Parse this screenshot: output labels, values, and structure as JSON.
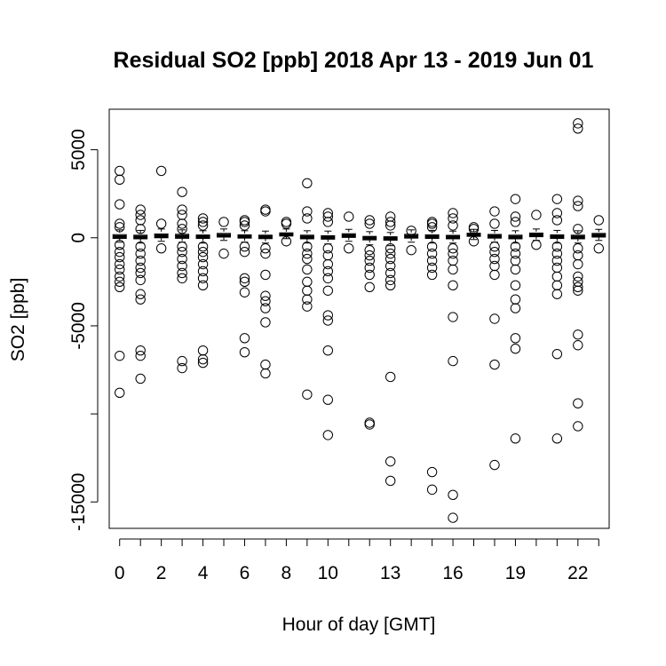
{
  "chart_data": {
    "type": "boxplot",
    "title": "Residual SO2 [ppb] 2018 Apr 13 - 2019 Jun 01",
    "xlabel": "Hour of day [GMT]",
    "ylabel": "SO2 [ppb]",
    "xlim": [
      -0.5,
      23.5
    ],
    "ylim": [
      -16500,
      7300
    ],
    "x_tick_labels": [
      "0",
      "2",
      "4",
      "6",
      "8",
      "10",
      "13",
      "16",
      "19",
      "22"
    ],
    "x_tick_label_positions": [
      0,
      2,
      4,
      6,
      8,
      10,
      13,
      16,
      19,
      22
    ],
    "y_ticks": [
      5000,
      0,
      -5000,
      -10000,
      -15000
    ],
    "y_tick_labels": [
      "5000",
      "0",
      "-5000",
      "",
      "-15000"
    ],
    "hours": [
      0,
      1,
      2,
      3,
      4,
      5,
      6,
      7,
      8,
      9,
      10,
      11,
      12,
      13,
      14,
      15,
      16,
      17,
      18,
      19,
      20,
      21,
      22,
      23
    ],
    "boxes": [
      {
        "hour": 0,
        "q1": -40,
        "median": 60,
        "q3": 180,
        "whisker_low": -250,
        "whisker_high": 450
      },
      {
        "hour": 1,
        "q1": -60,
        "median": 40,
        "q3": 150,
        "whisker_low": -300,
        "whisker_high": 420
      },
      {
        "hour": 2,
        "q1": 0,
        "median": 100,
        "q3": 220,
        "whisker_low": -200,
        "whisker_high": 500
      },
      {
        "hour": 3,
        "q1": -30,
        "median": 80,
        "q3": 200,
        "whisker_low": -250,
        "whisker_high": 450
      },
      {
        "hour": 4,
        "q1": -40,
        "median": 60,
        "q3": 160,
        "whisker_low": -300,
        "whisker_high": 400
      },
      {
        "hour": 5,
        "q1": 40,
        "median": 130,
        "q3": 250,
        "whisker_low": -150,
        "whisker_high": 500
      },
      {
        "hour": 6,
        "q1": -20,
        "median": 70,
        "q3": 170,
        "whisker_low": -250,
        "whisker_high": 400
      },
      {
        "hour": 7,
        "q1": -50,
        "median": 50,
        "q3": 150,
        "whisker_low": -300,
        "whisker_high": 380
      },
      {
        "hour": 8,
        "q1": 100,
        "median": 180,
        "q3": 280,
        "whisker_low": -50,
        "whisker_high": 500
      },
      {
        "hour": 9,
        "q1": -60,
        "median": 40,
        "q3": 150,
        "whisker_low": -300,
        "whisker_high": 400
      },
      {
        "hour": 10,
        "q1": -80,
        "median": 20,
        "q3": 120,
        "whisker_low": -350,
        "whisker_high": 380
      },
      {
        "hour": 11,
        "q1": 20,
        "median": 120,
        "q3": 230,
        "whisker_low": -200,
        "whisker_high": 480
      },
      {
        "hour": 12,
        "q1": -120,
        "median": -20,
        "q3": 80,
        "whisker_low": -400,
        "whisker_high": 350
      },
      {
        "hour": 13,
        "q1": -140,
        "median": -40,
        "q3": 60,
        "whisker_low": -450,
        "whisker_high": 300
      },
      {
        "hour": 14,
        "q1": -20,
        "median": 80,
        "q3": 200,
        "whisker_low": -250,
        "whisker_high": 450
      },
      {
        "hour": 15,
        "q1": -40,
        "median": 60,
        "q3": 170,
        "whisker_low": -300,
        "whisker_high": 420
      },
      {
        "hour": 16,
        "q1": -60,
        "median": 40,
        "q3": 140,
        "whisker_low": -300,
        "whisker_high": 380
      },
      {
        "hour": 17,
        "q1": 80,
        "median": 160,
        "q3": 260,
        "whisker_low": -100,
        "whisker_high": 480
      },
      {
        "hour": 18,
        "q1": -20,
        "median": 80,
        "q3": 190,
        "whisker_low": -250,
        "whisker_high": 420
      },
      {
        "hour": 19,
        "q1": -60,
        "median": 40,
        "q3": 150,
        "whisker_low": -300,
        "whisker_high": 400
      },
      {
        "hour": 20,
        "q1": 60,
        "median": 160,
        "q3": 270,
        "whisker_low": -150,
        "whisker_high": 500
      },
      {
        "hour": 21,
        "q1": -40,
        "median": 60,
        "q3": 170,
        "whisker_low": -300,
        "whisker_high": 420
      },
      {
        "hour": 22,
        "q1": -60,
        "median": 40,
        "q3": 150,
        "whisker_low": -300,
        "whisker_high": 400
      },
      {
        "hour": 23,
        "q1": 40,
        "median": 140,
        "q3": 250,
        "whisker_low": -150,
        "whisker_high": 480
      }
    ],
    "outliers": [
      {
        "hour": 0,
        "values": [
          3800,
          3300,
          1900,
          800,
          600,
          -400,
          -800,
          -1100,
          -1500,
          -1800,
          -2200,
          -2500,
          -2800,
          -6700,
          -8800
        ]
      },
      {
        "hour": 1,
        "values": [
          1600,
          1300,
          1000,
          500,
          -500,
          -900,
          -1300,
          -1700,
          -2000,
          -2400,
          -3200,
          -3500,
          -6400,
          -6700,
          -8000
        ]
      },
      {
        "hour": 2,
        "values": [
          3800,
          800,
          -600
        ]
      },
      {
        "hour": 3,
        "values": [
          2600,
          1600,
          1300,
          800,
          500,
          -500,
          -800,
          -1200,
          -1600,
          -2000,
          -2300,
          -7000,
          -7400
        ]
      },
      {
        "hour": 4,
        "values": [
          1100,
          900,
          700,
          -500,
          -800,
          -1100,
          -1500,
          -1900,
          -2300,
          -2700,
          -6400,
          -6900,
          -7100
        ]
      },
      {
        "hour": 5,
        "values": [
          900,
          -900
        ]
      },
      {
        "hour": 6,
        "values": [
          1000,
          900,
          700,
          -500,
          -800,
          -2300,
          -2500,
          -3100,
          -5700,
          -6500
        ]
      },
      {
        "hour": 7,
        "values": [
          1600,
          1500,
          -600,
          -900,
          -2100,
          -3300,
          -3600,
          -4000,
          -4800,
          -7200,
          -7700
        ]
      },
      {
        "hour": 8,
        "values": [
          900,
          800,
          -200
        ]
      },
      {
        "hour": 9,
        "values": [
          3100,
          1500,
          1100,
          -500,
          -900,
          -1200,
          -1800,
          -2500,
          -3000,
          -3500,
          -3900,
          -8900
        ]
      },
      {
        "hour": 10,
        "values": [
          1400,
          1200,
          900,
          -600,
          -1000,
          -1500,
          -1900,
          -2300,
          -3000,
          -4400,
          -4700,
          -6400,
          -9200,
          -11200
        ]
      },
      {
        "hour": 11,
        "values": [
          1200,
          -600
        ]
      },
      {
        "hour": 12,
        "values": [
          1000,
          800,
          -700,
          -1000,
          -1300,
          -1700,
          -2100,
          -2800,
          -10500,
          -10600
        ]
      },
      {
        "hour": 13,
        "values": [
          1200,
          900,
          700,
          -600,
          -900,
          -1200,
          -1600,
          -2000,
          -2400,
          -2700,
          -7900,
          -12700,
          -13800
        ]
      },
      {
        "hour": 14,
        "values": [
          400,
          -700
        ]
      },
      {
        "hour": 15,
        "values": [
          900,
          800,
          600,
          -500,
          -900,
          -1300,
          -1700,
          -2100,
          -13300,
          -14300
        ]
      },
      {
        "hour": 16,
        "values": [
          1400,
          1100,
          700,
          -600,
          -900,
          -1300,
          -1800,
          -2700,
          -4500,
          -7000,
          -14600,
          -15900
        ]
      },
      {
        "hour": 17,
        "values": [
          600,
          500,
          -200
        ]
      },
      {
        "hour": 18,
        "values": [
          1500,
          800,
          -500,
          -800,
          -1200,
          -1600,
          -2100,
          -4600,
          -7200,
          -12900
        ]
      },
      {
        "hour": 19,
        "values": [
          2200,
          1200,
          900,
          -500,
          -900,
          -1300,
          -1800,
          -2700,
          -3500,
          -4000,
          -5700,
          -6300,
          -11400
        ]
      },
      {
        "hour": 20,
        "values": [
          1300,
          -400
        ]
      },
      {
        "hour": 21,
        "values": [
          2200,
          1400,
          1000,
          -500,
          -900,
          -1300,
          -1700,
          -2200,
          -2700,
          -3200,
          -6600,
          -11400
        ]
      },
      {
        "hour": 22,
        "values": [
          6500,
          6200,
          2100,
          1800,
          500,
          -600,
          -1000,
          -1500,
          -2200,
          -2500,
          -2800,
          -3000,
          -5500,
          -6100,
          -9400,
          -10700
        ]
      },
      {
        "hour": 23,
        "values": [
          1000,
          -600
        ]
      }
    ]
  }
}
